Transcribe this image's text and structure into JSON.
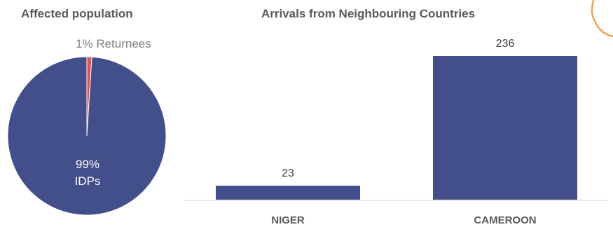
{
  "chart_data": [
    {
      "type": "pie",
      "title": "Affected population",
      "slices": [
        {
          "label": "IDPs",
          "percent_label": "99%",
          "value": 99,
          "color": "#434F8A"
        },
        {
          "label": "Returnees",
          "percent_label": "1%",
          "value": 1,
          "color": "#E8504A"
        }
      ]
    },
    {
      "type": "bar",
      "title": "Arrivals from Neighbouring Countries",
      "categories": [
        "NIGER",
        "CAMEROON"
      ],
      "values": [
        23,
        236
      ],
      "color": "#434F8A",
      "xlabel": "",
      "ylabel": "",
      "ylim": [
        0,
        250
      ],
      "grid": false
    }
  ],
  "decoration": {
    "icon": "map-outline-icon",
    "color": "#F0A24B"
  }
}
